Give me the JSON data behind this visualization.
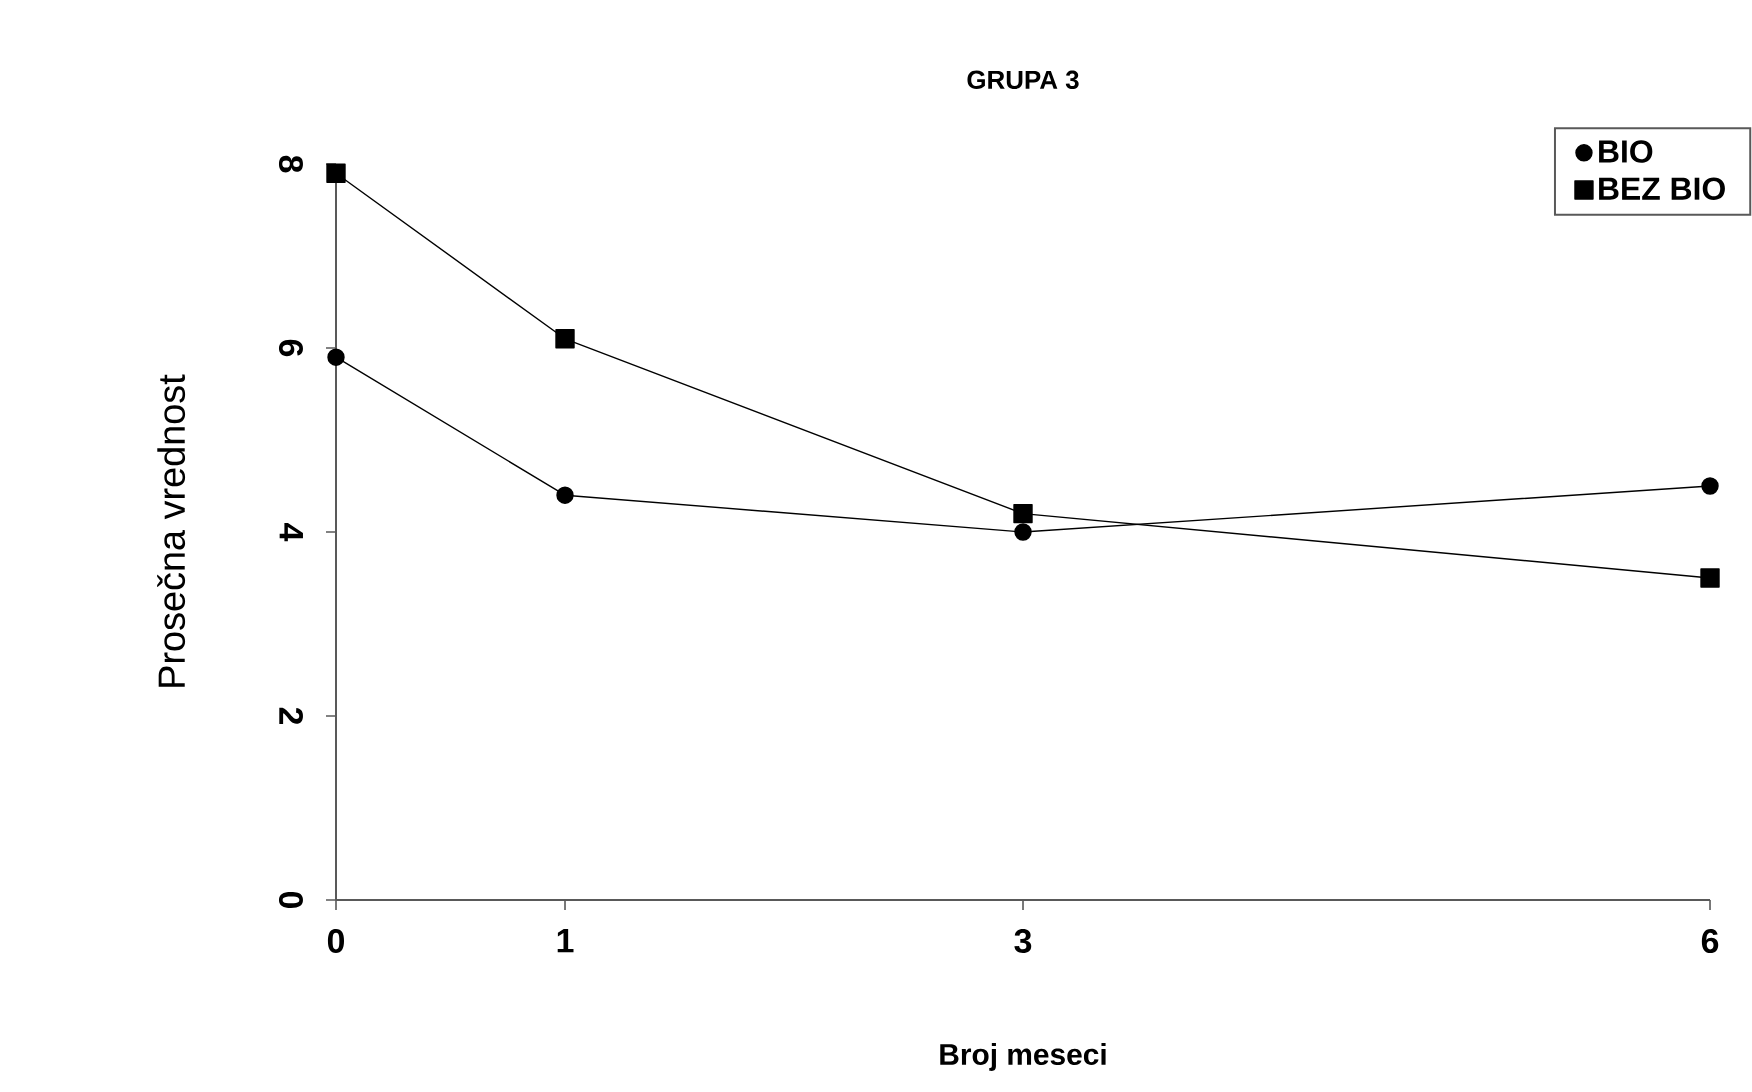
{
  "chart_data": {
    "type": "line",
    "title": "GRUPA 3",
    "xlabel": "Broj meseci",
    "ylabel": "Prosečna vrednost",
    "x": [
      0,
      1,
      3,
      6
    ],
    "series": [
      {
        "name": "BIO",
        "color": "#000000",
        "marker": "circle",
        "values": [
          5.9,
          4.4,
          4.0,
          4.5
        ]
      },
      {
        "name": "BEZ BIO",
        "color": "#000000",
        "marker": "square",
        "values": [
          7.9,
          6.1,
          4.2,
          3.5
        ]
      }
    ],
    "xlim": [
      0,
      6
    ],
    "xticks": [
      0,
      1,
      3,
      6
    ],
    "ylim": [
      0,
      8
    ],
    "yticks": [
      0,
      2,
      4,
      6,
      8
    ],
    "legend": "top right"
  }
}
